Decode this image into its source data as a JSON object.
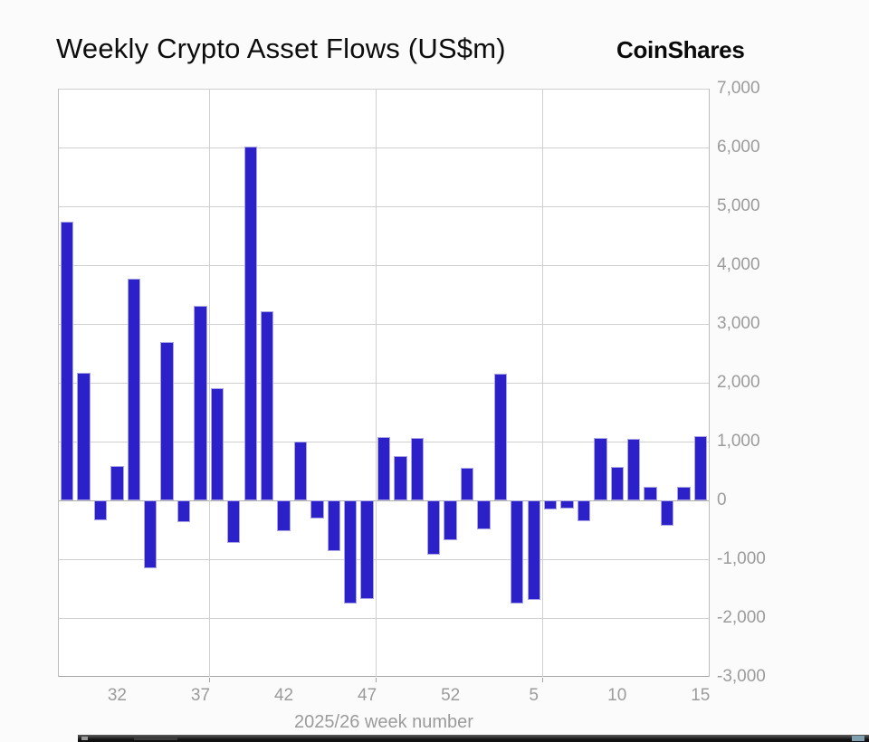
{
  "header": {
    "title": "Weekly Crypto Asset Flows (US$m)",
    "brand": "CoinShares"
  },
  "chart_data": {
    "type": "bar",
    "title": "Weekly Crypto Asset Flows (US$m)",
    "xlabel": "2025/26 week number",
    "ylabel": "",
    "ylim": [
      -3000,
      7000
    ],
    "grid": true,
    "legend_position": "none",
    "bar_color": "#2c21c9",
    "y_ticks": [
      7000,
      6000,
      5000,
      4000,
      3000,
      2000,
      1000,
      0,
      -1000,
      -2000,
      -3000
    ],
    "y_tick_labels": [
      "7,000",
      "6,000",
      "5,000",
      "4,000",
      "3,000",
      "2,000",
      "1,000",
      "0",
      "-1,000",
      "-2,000",
      "-3,000"
    ],
    "x_week_numbers": [
      29,
      30,
      31,
      32,
      33,
      34,
      35,
      36,
      37,
      38,
      39,
      40,
      41,
      42,
      43,
      44,
      45,
      46,
      47,
      48,
      49,
      50,
      51,
      52,
      1,
      2,
      3,
      4,
      5,
      6,
      7,
      8,
      9,
      10,
      11,
      12,
      13,
      14,
      15
    ],
    "values": [
      4740,
      2170,
      -340,
      580,
      3770,
      -1150,
      2690,
      -370,
      3310,
      1910,
      -720,
      6010,
      3220,
      -520,
      1000,
      -310,
      -860,
      -1750,
      -1680,
      1080,
      750,
      1060,
      -920,
      -680,
      550,
      -490,
      2150,
      -1750,
      -1690,
      -150,
      -140,
      -350,
      1060,
      570,
      1050,
      230,
      -430,
      230,
      1100
    ],
    "x_tick_marks": [
      {
        "label": "32",
        "bar_index": 3
      },
      {
        "label": "37",
        "bar_index": 8
      },
      {
        "label": "42",
        "bar_index": 13
      },
      {
        "label": "47",
        "bar_index": 18
      },
      {
        "label": "52",
        "bar_index": 23
      },
      {
        "label": "5",
        "bar_index": 28
      },
      {
        "label": "10",
        "bar_index": 33
      },
      {
        "label": "15",
        "bar_index": 38
      }
    ],
    "vertical_gridline_boundaries": [
      9,
      19,
      29
    ]
  }
}
